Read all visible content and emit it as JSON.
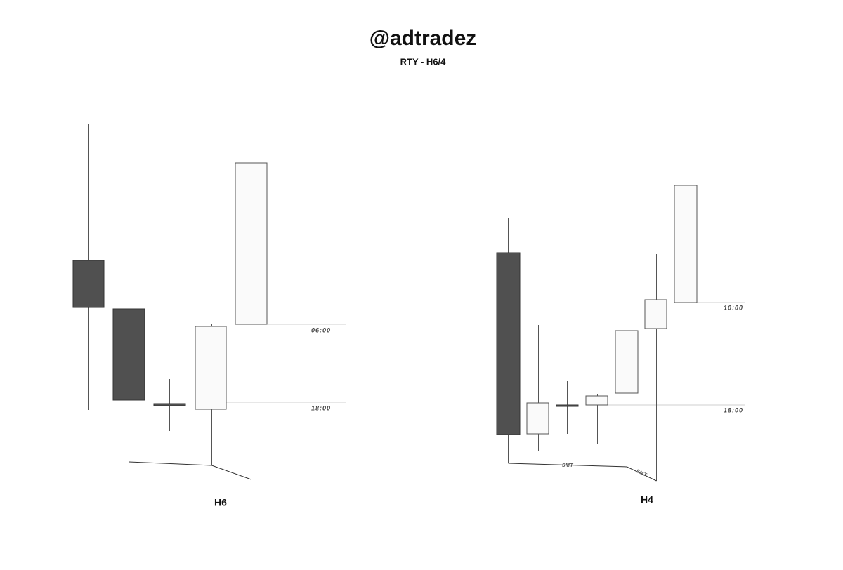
{
  "header": {
    "title": "@adtradez",
    "subtitle": "RTY - H6/4"
  },
  "panels": [
    {
      "label": "H6",
      "levels": [
        "06:00",
        "18:00"
      ]
    },
    {
      "label": "H4",
      "levels": [
        "10:00",
        "18:00"
      ],
      "annotations": [
        "SMT",
        "SMT"
      ]
    }
  ]
}
